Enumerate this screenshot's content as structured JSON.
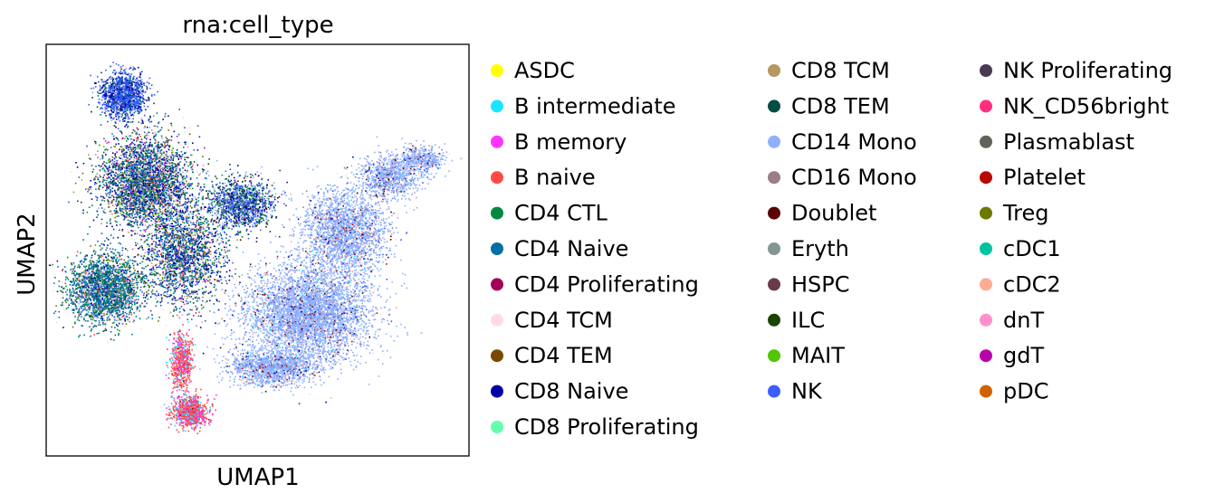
{
  "chart_data": {
    "type": "scatter",
    "title": "rna:cell_type",
    "xlabel": "UMAP1",
    "ylabel": "UMAP2",
    "xlim": [
      0,
      100
    ],
    "ylim": [
      0,
      100
    ],
    "grid": false,
    "ticks": false,
    "legend_position": "right",
    "legend_columns": 3,
    "series": [
      {
        "name": "ASDC",
        "color": "#ffff00"
      },
      {
        "name": "B intermediate",
        "color": "#1ce6ff"
      },
      {
        "name": "B memory",
        "color": "#ff34ff"
      },
      {
        "name": "B naive",
        "color": "#ff4a46"
      },
      {
        "name": "CD4 CTL",
        "color": "#008941"
      },
      {
        "name": "CD4 Naive",
        "color": "#006fa6"
      },
      {
        "name": "CD4 Proliferating",
        "color": "#a30059"
      },
      {
        "name": "CD4 TCM",
        "color": "#ffdbe5"
      },
      {
        "name": "CD4 TEM",
        "color": "#7a4900"
      },
      {
        "name": "CD8 Naive",
        "color": "#0000a6"
      },
      {
        "name": "CD8 Proliferating",
        "color": "#63ffac"
      },
      {
        "name": "CD8 TCM",
        "color": "#b79762"
      },
      {
        "name": "CD8 TEM",
        "color": "#004d43"
      },
      {
        "name": "CD14 Mono",
        "color": "#8fb0ff"
      },
      {
        "name": "CD16 Mono",
        "color": "#997d87"
      },
      {
        "name": "Doublet",
        "color": "#5a0007"
      },
      {
        "name": "Eryth",
        "color": "#809693"
      },
      {
        "name": "HSPC",
        "color": "#6a3a4c"
      },
      {
        "name": "ILC",
        "color": "#1b4400"
      },
      {
        "name": "MAIT",
        "color": "#4fc601"
      },
      {
        "name": "NK",
        "color": "#3b5dff"
      },
      {
        "name": "NK Proliferating",
        "color": "#4a3b53"
      },
      {
        "name": "NK_CD56bright",
        "color": "#ff2f80"
      },
      {
        "name": "Plasmablast",
        "color": "#61615a"
      },
      {
        "name": "Platelet",
        "color": "#ba0900"
      },
      {
        "name": "Treg",
        "color": "#6b7900"
      },
      {
        "name": "cDC1",
        "color": "#00c2a0"
      },
      {
        "name": "cDC2",
        "color": "#ffaa92"
      },
      {
        "name": "dnT",
        "color": "#ff90c9"
      },
      {
        "name": "gdT",
        "color": "#b903aa"
      },
      {
        "name": "pDC",
        "color": "#d16100"
      }
    ]
  }
}
